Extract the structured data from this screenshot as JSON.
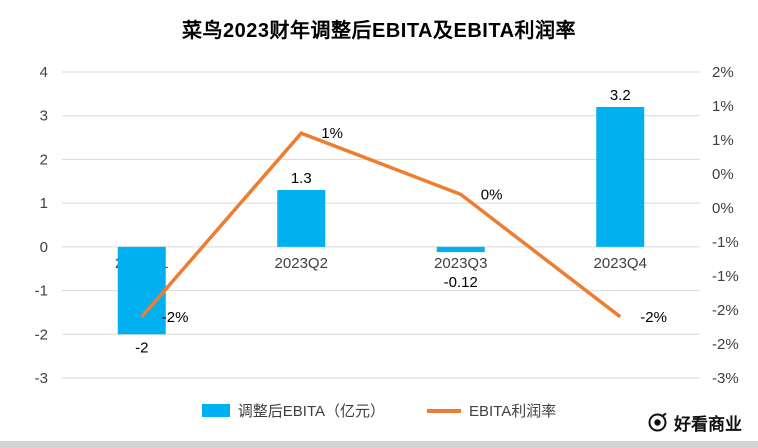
{
  "page": {
    "watermark": {
      "text": "好看商业"
    }
  },
  "chart_data": {
    "type": "combo",
    "title": "菜鸟2023财年调整后EBITA及EBITA利润率",
    "categories": [
      "2023Q1",
      "2023Q2",
      "2023Q3",
      "2023Q4"
    ],
    "series": [
      {
        "name": "调整后EBITA（亿元）",
        "type": "bar",
        "axis": "left",
        "values": [
          -2,
          1.3,
          -0.12,
          3.2
        ],
        "labels": [
          "-2",
          "1.3",
          "-0.12",
          "3.2"
        ],
        "color": "#00B0F0"
      },
      {
        "name": "EBITA利润率",
        "type": "line",
        "axis": "right",
        "unit": "%",
        "values": [
          -2,
          1,
          0,
          -2
        ],
        "labels": [
          "-2%",
          "1%",
          "0%",
          "-2%"
        ],
        "color": "#ED7D31"
      }
    ],
    "left_axis": {
      "min": -3,
      "max": 4,
      "step": 1,
      "tick_labels": [
        "4",
        "3",
        "2",
        "1",
        "0",
        "-1",
        "-2",
        "-3"
      ]
    },
    "right_axis": {
      "min": -3,
      "max": 2,
      "tick_labels": [
        "2%",
        "1%",
        "1%",
        "0%",
        "0%",
        "-1%",
        "-1%",
        "-2%",
        "-2%",
        "-3%"
      ]
    },
    "grid": true,
    "gridline_color": "#d9d9d9",
    "legend_position": "bottom"
  }
}
